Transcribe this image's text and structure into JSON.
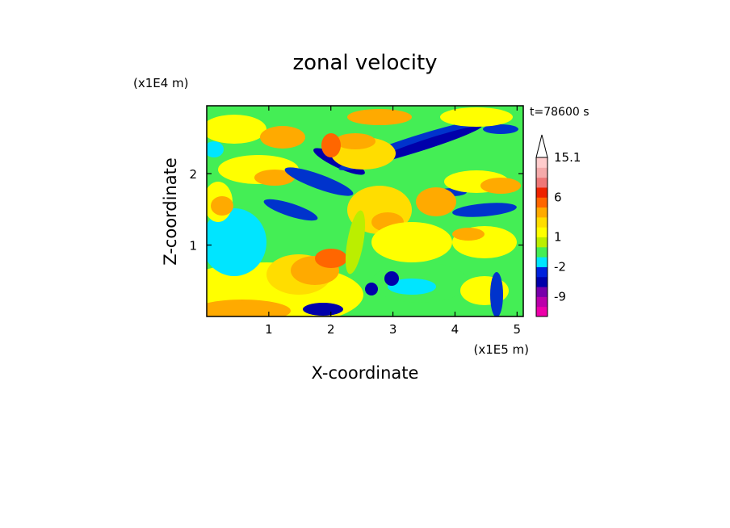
{
  "chart_data": {
    "type": "heatmap",
    "title": "zonal velocity",
    "xlabel": "X-coordinate",
    "ylabel": "Z-coordinate",
    "x_unit": "(x1E5 m)",
    "y_unit": "(x1E4 m)",
    "time_label": "t=78600 s",
    "xlim": [
      0,
      5.1
    ],
    "ylim": [
      0,
      2.95
    ],
    "x_ticks": [
      "1",
      "2",
      "3",
      "4",
      "5"
    ],
    "x_tick_values": [
      1,
      2,
      3,
      4,
      5
    ],
    "y_ticks": [
      "1",
      "2"
    ],
    "y_tick_values": [
      1,
      2
    ],
    "colorbar": {
      "levels": [
        -15,
        -12,
        -9,
        -6,
        -4,
        -2,
        -1,
        0,
        1,
        2,
        3,
        4,
        6,
        8,
        10,
        12.5,
        15.1
      ],
      "tick_labels": [
        "15.1",
        "6",
        "1",
        "-2",
        "-9"
      ],
      "tick_values": [
        15.1,
        6,
        1,
        -2,
        -9
      ],
      "colors": [
        "#ee00aa",
        "#bb00aa",
        "#7700aa",
        "#0000aa",
        "#0022dd",
        "#00e5ff",
        "#44ee55",
        "#bbee00",
        "#ffff00",
        "#ffdd00",
        "#ffaa00",
        "#ff6600",
        "#ee2200",
        "#ee7777",
        "#f5aaaa",
        "#ffcccc"
      ],
      "extend": "max"
    }
  }
}
